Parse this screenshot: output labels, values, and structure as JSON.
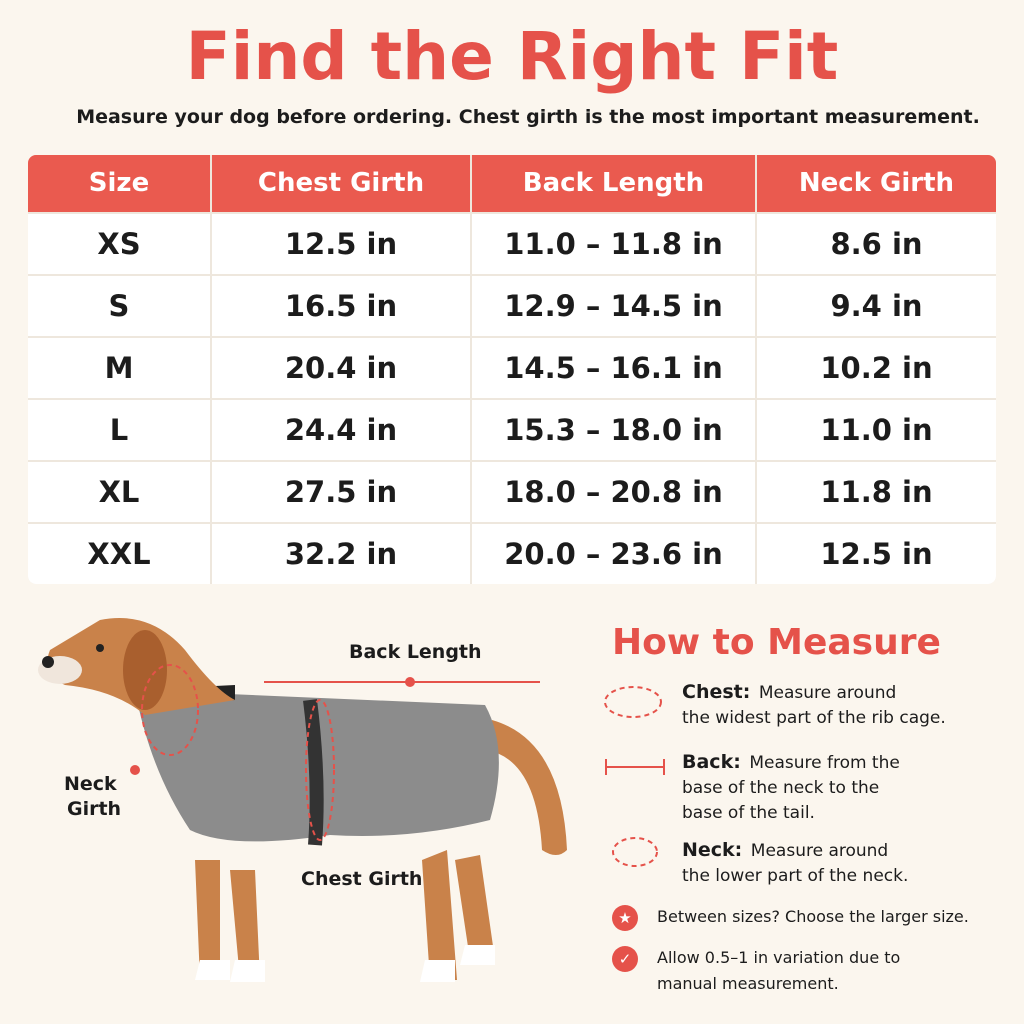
{
  "header": {
    "title": "Find the Right Fit",
    "subtitle": "Measure your dog before ordering. Chest girth is the most important measurement."
  },
  "table": {
    "columns": [
      "Size",
      "Chest Girth",
      "Back Length",
      "Neck Girth"
    ],
    "rows": [
      [
        "XS",
        "12.5 in",
        "11.0 – 11.8 in",
        "8.6 in"
      ],
      [
        "S",
        "16.5 in",
        "12.9 – 14.5 in",
        "9.4 in"
      ],
      [
        "M",
        "20.4 in",
        "14.5 – 16.1 in",
        "10.2 in"
      ],
      [
        "L",
        "24.4 in",
        "15.3 – 18.0 in",
        "11.0 in"
      ],
      [
        "XL",
        "27.5 in",
        "18.0 – 20.8 in",
        "11.8 in"
      ],
      [
        "XXL",
        "32.2 in",
        "20.0 – 23.6 in",
        "12.5 in"
      ]
    ]
  },
  "diagram": {
    "back_length": "Back Length",
    "neck_girth": [
      "Neck",
      "Girth"
    ],
    "chest_girth": "Chest Girth"
  },
  "how_to": {
    "title": "How to Measure",
    "items": [
      {
        "label": "Chest:",
        "lines": [
          "Measure around",
          "the widest part of the rib cage."
        ]
      },
      {
        "label": "Back:",
        "lines": [
          "Measure from the",
          "base of the neck to the",
          "base of the tail."
        ]
      },
      {
        "label": "Neck:",
        "lines": [
          "Measure around",
          "the lower part of the neck."
        ]
      }
    ],
    "notes": [
      [
        "Between sizes? Choose the larger size."
      ],
      [
        "Allow 0.5–1 in variation due to",
        "manual measurement."
      ]
    ]
  }
}
